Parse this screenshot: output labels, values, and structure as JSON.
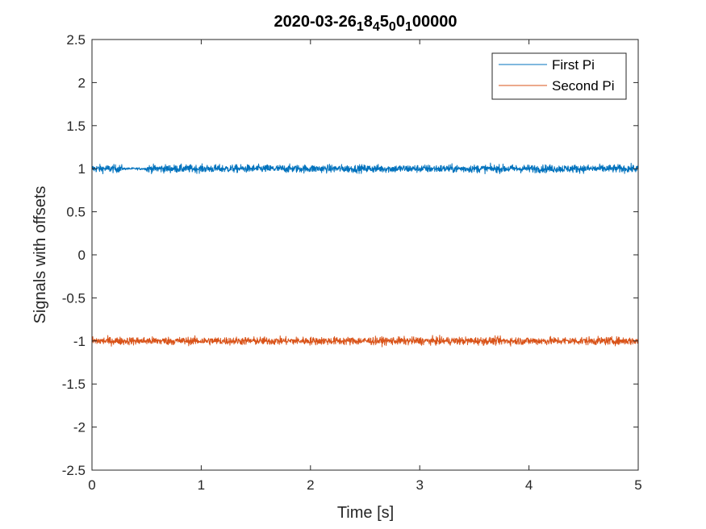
{
  "chart_data": {
    "type": "line",
    "title": {
      "parts": [
        "2020-03-26",
        "1",
        "8",
        "4",
        "5",
        "0",
        "0",
        "1",
        "00000"
      ],
      "subscript_indices": [
        1,
        3,
        5,
        7
      ]
    },
    "xlabel": "Time [s]",
    "ylabel": "Signals with offsets",
    "xlim": [
      0,
      5
    ],
    "ylim": [
      -2.5,
      2.5
    ],
    "x_ticks": [
      "0",
      "1",
      "2",
      "3",
      "4",
      "5"
    ],
    "y_ticks": [
      "2.5",
      "2",
      "1.5",
      "1",
      "0.5",
      "0",
      "-0.5",
      "-1",
      "-1.5",
      "-2",
      "-2.5"
    ],
    "grid": false,
    "legend_position": "top-right",
    "series": [
      {
        "name": "First Pi",
        "color": "#0072BD",
        "offset": 1.0,
        "noise_amplitude": 0.05,
        "segments": [
          {
            "x_start": 0.0,
            "x_end": 0.28,
            "amplitude": 0.05
          },
          {
            "x_start": 0.28,
            "x_end": 0.5,
            "amplitude": 0.015
          },
          {
            "x_start": 0.5,
            "x_end": 5.0,
            "amplitude": 0.05
          }
        ]
      },
      {
        "name": "Second Pi",
        "color": "#D95319",
        "offset": -1.0,
        "noise_amplitude": 0.05,
        "segments": [
          {
            "x_start": 0.0,
            "x_end": 5.0,
            "amplitude": 0.05
          }
        ]
      }
    ]
  }
}
